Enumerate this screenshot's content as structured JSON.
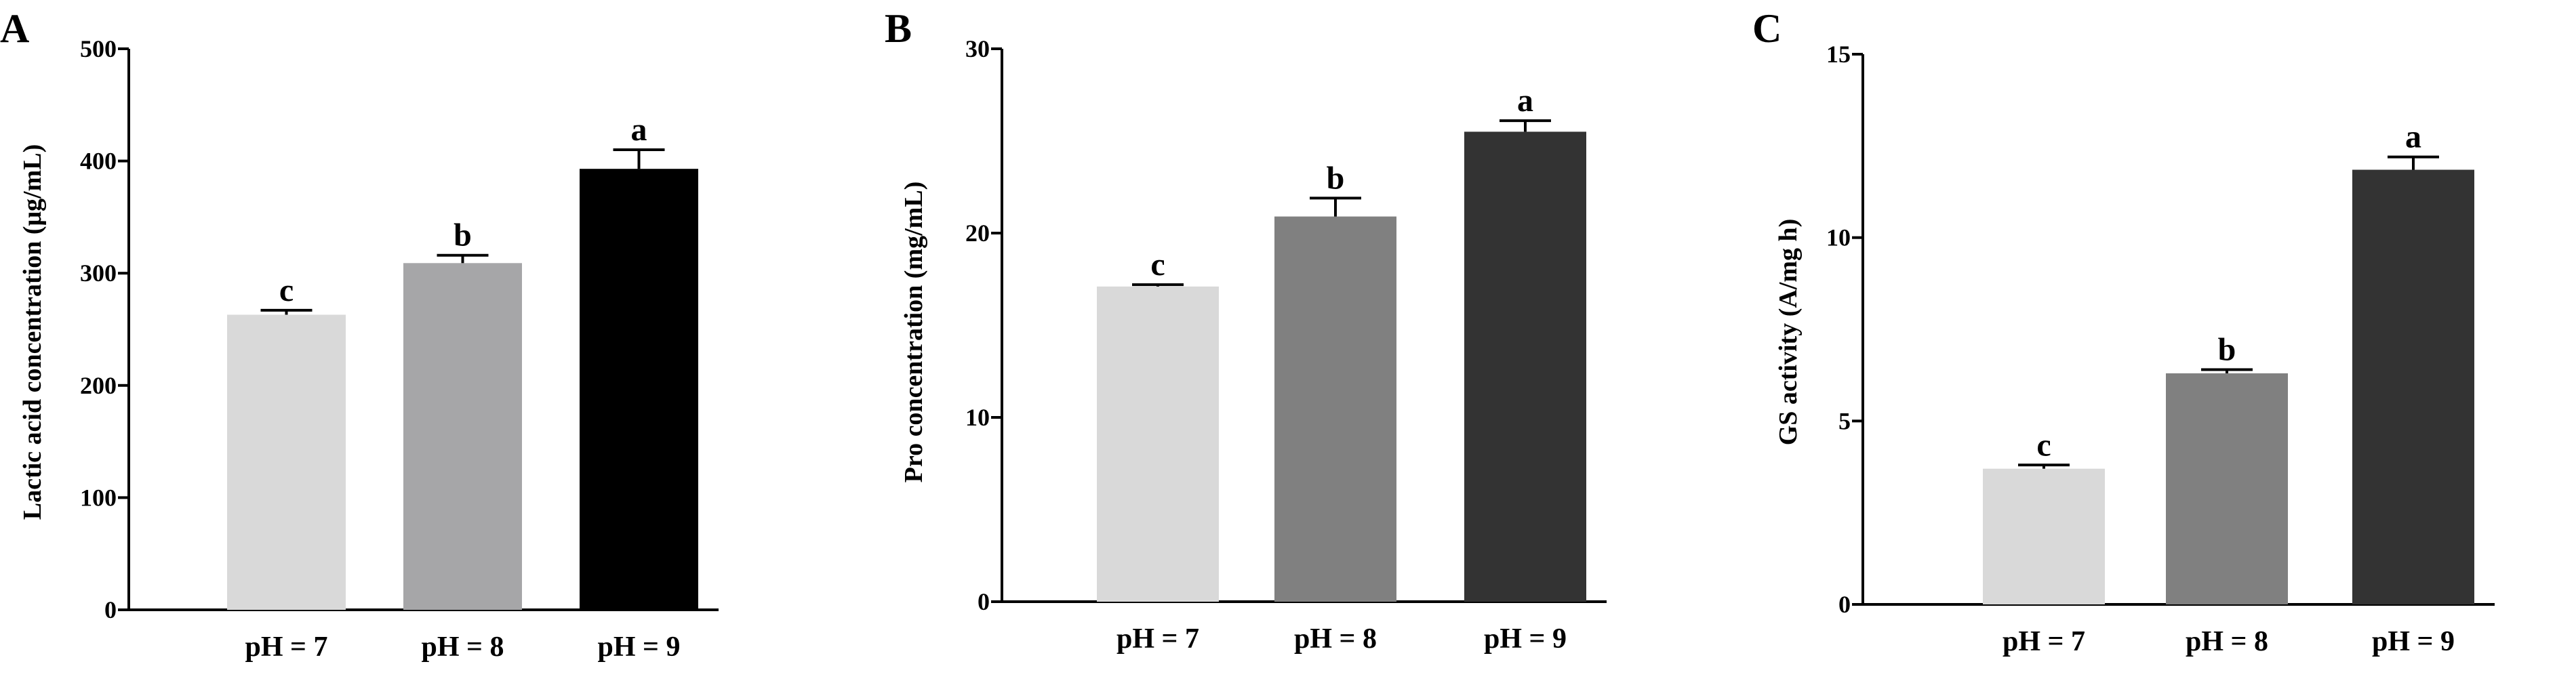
{
  "chart_data": [
    {
      "panel": "A",
      "type": "bar",
      "categories": [
        "pH = 7",
        "pH = 8",
        "pH = 9"
      ],
      "values": [
        263,
        309,
        393
      ],
      "errors": [
        4,
        7,
        17
      ],
      "labels": [
        "c",
        "b",
        "a"
      ],
      "colors": [
        "#d9d9d9",
        "#a6a6a8",
        "#000000"
      ],
      "ylabel": "Lactic acid concentration (μg/mL)",
      "ylim": [
        0,
        500
      ],
      "yticks": [
        0,
        100,
        200,
        300,
        400,
        500
      ]
    },
    {
      "panel": "B",
      "type": "bar",
      "categories": [
        "pH = 7",
        "pH = 8",
        "pH = 9"
      ],
      "values": [
        17.1,
        20.9,
        25.5
      ],
      "errors": [
        0.1,
        1.0,
        0.6
      ],
      "labels": [
        "c",
        "b",
        "a"
      ],
      "colors": [
        "#d9d9d9",
        "#808080",
        "#333333"
      ],
      "ylabel": "Pro concentration (mg/mL)",
      "ylim": [
        0,
        30
      ],
      "yticks": [
        0,
        10,
        20,
        30
      ]
    },
    {
      "panel": "C",
      "type": "bar",
      "categories": [
        "pH = 7",
        "pH = 8",
        "pH = 9"
      ],
      "values": [
        3.7,
        6.3,
        11.85
      ],
      "errors": [
        0.1,
        0.1,
        0.35
      ],
      "labels": [
        "c",
        "b",
        "a"
      ],
      "colors": [
        "#d9d9d9",
        "#808080",
        "#333333"
      ],
      "ylabel": "GS activity (A/mg h)",
      "ylim": [
        0,
        15
      ],
      "yticks": [
        0,
        5,
        10,
        15
      ]
    }
  ]
}
